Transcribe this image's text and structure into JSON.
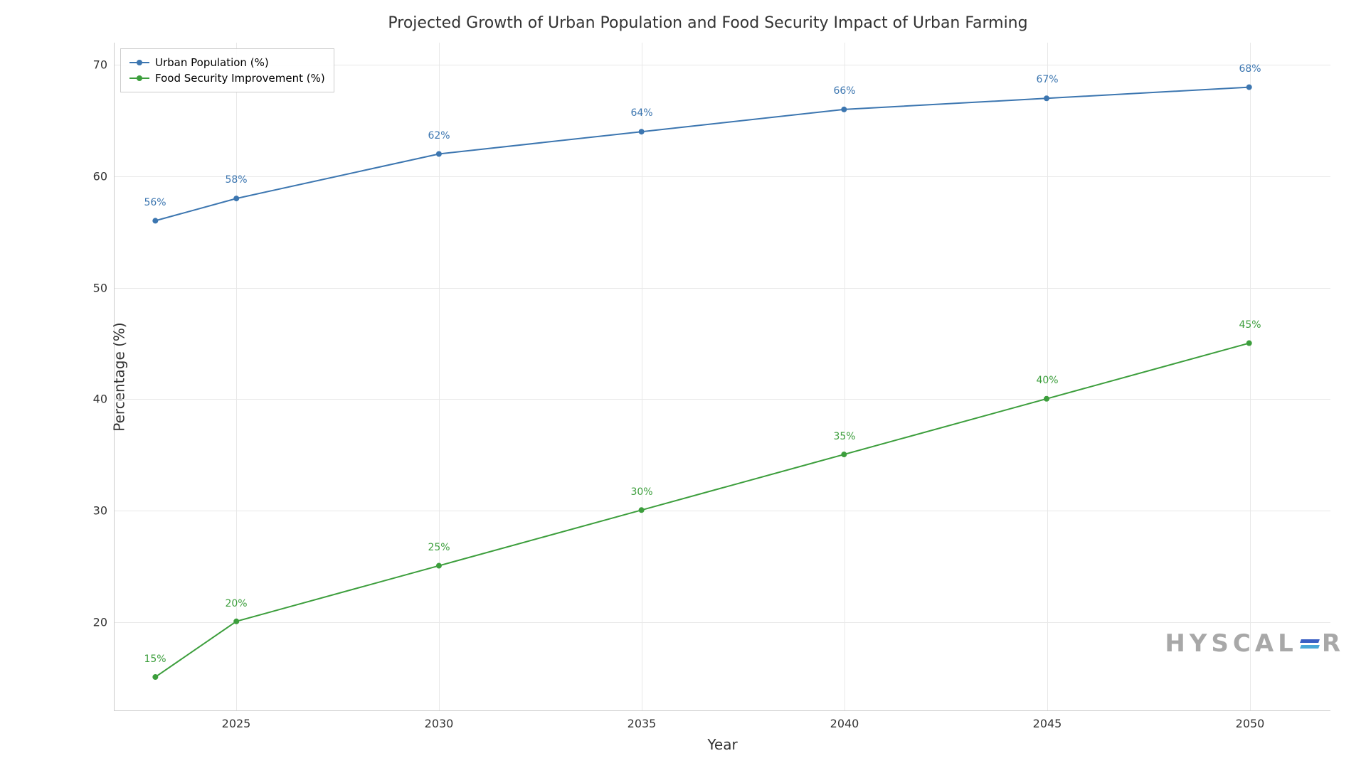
{
  "chart": {
    "type": "line",
    "title": "Projected Growth of Urban Population and Food Security Impact of Urban Farming",
    "title_fontsize": 22,
    "xlabel": "Year",
    "ylabel": "Percentage (%)",
    "label_fontsize": 20,
    "tick_fontsize": 16,
    "data_label_fontsize": 14,
    "background_color": "#ffffff",
    "grid_color": "#e8e8e8",
    "axis_color": "#cccccc",
    "xlim": [
      2022,
      2052
    ],
    "ylim": [
      12,
      72
    ],
    "x_ticks": [
      2025,
      2030,
      2035,
      2040,
      2045,
      2050
    ],
    "y_ticks": [
      20,
      30,
      40,
      50,
      60,
      70
    ],
    "years": [
      2023,
      2025,
      2030,
      2035,
      2040,
      2045,
      2050
    ],
    "series": [
      {
        "name": "Urban Population (%)",
        "color": "#3c76b0",
        "marker": "circle",
        "marker_size": 8,
        "line_width": 2,
        "values": [
          56,
          58,
          62,
          64,
          66,
          67,
          68
        ],
        "labels": [
          "56%",
          "58%",
          "62%",
          "64%",
          "66%",
          "67%",
          "68%"
        ],
        "label_offset_y": -18
      },
      {
        "name": "Food Security Improvement (%)",
        "color": "#3c9e3c",
        "marker": "circle",
        "marker_size": 8,
        "line_width": 2,
        "values": [
          15,
          20,
          25,
          30,
          35,
          40,
          45
        ],
        "labels": [
          "15%",
          "20%",
          "25%",
          "30%",
          "35%",
          "40%",
          "45%"
        ],
        "label_offset_y": -18
      }
    ],
    "legend": {
      "position": "upper-left",
      "border_color": "#cccccc",
      "background": "rgba(255,255,255,0.9)",
      "fontsize": 15
    },
    "watermark": {
      "text_left": "HYSCAL",
      "text_right": "R",
      "color": "#a8a8a8",
      "bar_color_1": "#3a5fc4",
      "bar_color_2": "#4aa8d8"
    }
  }
}
